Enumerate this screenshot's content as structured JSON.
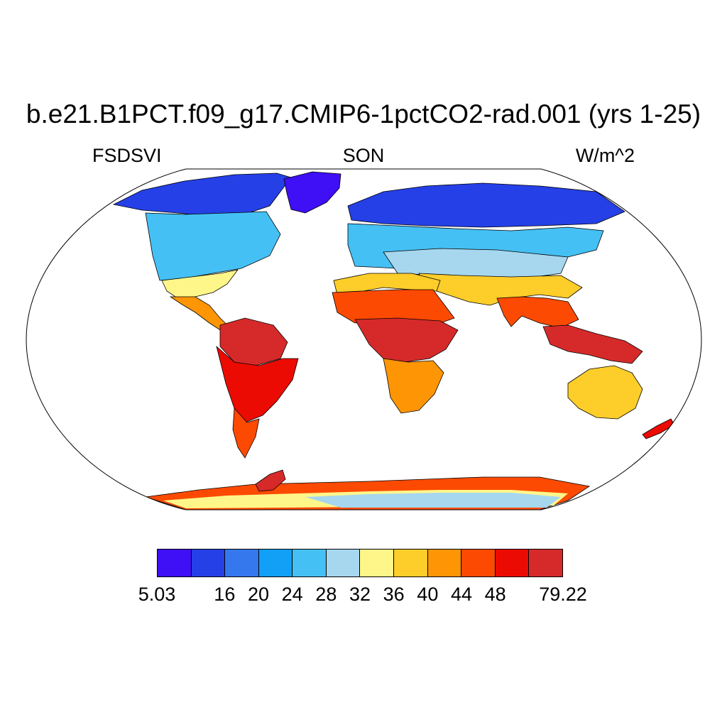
{
  "title": "b.e21.B1PCT.f09_g17.CMIP6-1pctCO2-rad.001 (yrs 1-25)",
  "subtitles": {
    "left": "FSDSVI",
    "center": "SON",
    "right": "W/m^2"
  },
  "colorbar": {
    "colors": [
      "#3f0ff5",
      "#2540e6",
      "#3578ee",
      "#12a0f7",
      "#45c0f4",
      "#a6d7ef",
      "#fff68a",
      "#fdcd2a",
      "#fd9505",
      "#fd4a02",
      "#ec0b02",
      "#d62a2a"
    ],
    "tick_labels": [
      {
        "label": "5.03",
        "index": 0
      },
      {
        "label": "16",
        "index": 2
      },
      {
        "label": "20",
        "index": 3
      },
      {
        "label": "24",
        "index": 4
      },
      {
        "label": "28",
        "index": 5
      },
      {
        "label": "32",
        "index": 6
      },
      {
        "label": "36",
        "index": 7
      },
      {
        "label": "40",
        "index": 8
      },
      {
        "label": "44",
        "index": 9
      },
      {
        "label": "48",
        "index": 10
      },
      {
        "label": "79.22",
        "index": 12
      }
    ]
  }
}
